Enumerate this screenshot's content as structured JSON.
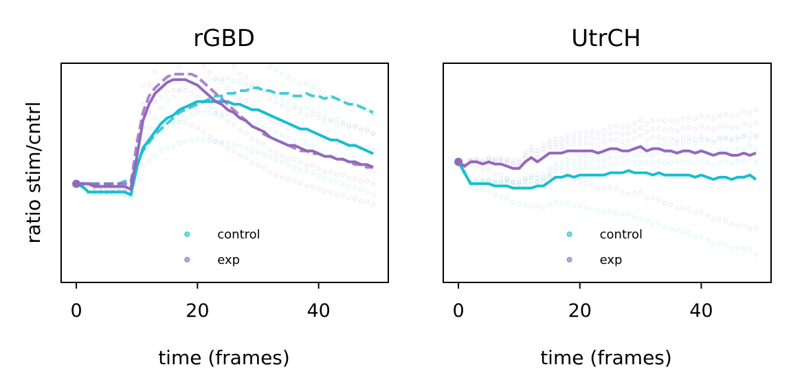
{
  "figure": {
    "ylabel": "ratio stim/cntrl",
    "colors": {
      "control": "#17becf",
      "exp": "#9467bd"
    }
  },
  "chart_data": [
    {
      "type": "line",
      "title": "rGBD",
      "xlabel": "time (frames)",
      "ylabel": "ratio stim/cntrl",
      "xlim": [
        -2.5,
        51.5
      ],
      "ylim": [
        0.64,
        1.44
      ],
      "xticks": [
        0,
        20,
        40
      ],
      "yticks_visible": false,
      "legend": {
        "position": "lower-center",
        "entries": [
          "control",
          "exp"
        ]
      },
      "series": [
        {
          "name": "control",
          "style": "solid",
          "color": "#17becf",
          "x": [
            0,
            1,
            2,
            3,
            4,
            5,
            6,
            7,
            8,
            9,
            10,
            11,
            12,
            13,
            14,
            15,
            16,
            17,
            18,
            19,
            20,
            21,
            22,
            23,
            24,
            25,
            26,
            27,
            28,
            29,
            30,
            31,
            32,
            33,
            34,
            35,
            36,
            37,
            38,
            39,
            40,
            41,
            42,
            43,
            44,
            45,
            46,
            47,
            48,
            49
          ],
          "y": [
            1.0,
            0.99,
            0.97,
            0.97,
            0.97,
            0.97,
            0.97,
            0.97,
            0.97,
            0.96,
            1.06,
            1.13,
            1.16,
            1.19,
            1.22,
            1.24,
            1.25,
            1.27,
            1.28,
            1.29,
            1.3,
            1.3,
            1.3,
            1.3,
            1.3,
            1.3,
            1.29,
            1.29,
            1.28,
            1.27,
            1.27,
            1.26,
            1.25,
            1.24,
            1.23,
            1.22,
            1.21,
            1.2,
            1.2,
            1.19,
            1.18,
            1.17,
            1.16,
            1.16,
            1.15,
            1.14,
            1.14,
            1.13,
            1.12,
            1.11
          ]
        },
        {
          "style": "dashed",
          "color": "#17becf",
          "x": [
            0,
            1,
            2,
            3,
            4,
            5,
            6,
            7,
            8,
            9,
            10,
            11,
            12,
            13,
            14,
            15,
            16,
            17,
            18,
            19,
            20,
            21,
            22,
            23,
            24,
            25,
            26,
            27,
            28,
            29,
            30,
            31,
            32,
            33,
            34,
            35,
            36,
            37,
            38,
            39,
            40,
            41,
            42,
            43,
            44,
            45,
            46,
            47,
            48,
            49
          ],
          "y": [
            1.0,
            1.0,
            1.0,
            1.0,
            1.0,
            1.0,
            1.0,
            1.0,
            1.01,
            1.01,
            1.08,
            1.12,
            1.15,
            1.18,
            1.2,
            1.22,
            1.24,
            1.26,
            1.27,
            1.28,
            1.29,
            1.3,
            1.31,
            1.32,
            1.32,
            1.33,
            1.33,
            1.34,
            1.34,
            1.35,
            1.35,
            1.34,
            1.34,
            1.33,
            1.33,
            1.33,
            1.32,
            1.32,
            1.33,
            1.32,
            1.32,
            1.31,
            1.32,
            1.31,
            1.3,
            1.29,
            1.29,
            1.28,
            1.27,
            1.26
          ]
        },
        {
          "name": "exp",
          "style": "solid",
          "color": "#9467bd",
          "x": [
            0,
            1,
            2,
            3,
            4,
            5,
            6,
            7,
            8,
            9,
            10,
            11,
            12,
            13,
            14,
            15,
            16,
            17,
            18,
            19,
            20,
            21,
            22,
            23,
            24,
            25,
            26,
            27,
            28,
            29,
            30,
            31,
            32,
            33,
            34,
            35,
            36,
            37,
            38,
            39,
            40,
            41,
            42,
            43,
            44,
            45,
            46,
            47,
            48,
            49
          ],
          "y": [
            1.0,
            1.0,
            1.0,
            0.99,
            0.99,
            0.99,
            0.99,
            0.99,
            0.99,
            0.98,
            1.1,
            1.23,
            1.29,
            1.33,
            1.35,
            1.37,
            1.38,
            1.38,
            1.38,
            1.37,
            1.36,
            1.34,
            1.32,
            1.3,
            1.29,
            1.27,
            1.26,
            1.24,
            1.23,
            1.21,
            1.2,
            1.19,
            1.17,
            1.16,
            1.15,
            1.14,
            1.14,
            1.13,
            1.12,
            1.12,
            1.11,
            1.1,
            1.1,
            1.09,
            1.09,
            1.08,
            1.08,
            1.07,
            1.07,
            1.06
          ]
        },
        {
          "style": "dashed",
          "color": "#9467bd",
          "x": [
            0,
            1,
            2,
            3,
            4,
            5,
            6,
            7,
            8,
            9,
            10,
            11,
            12,
            13,
            14,
            15,
            16,
            17,
            18,
            19,
            20,
            21,
            22,
            23,
            24,
            25,
            26,
            27,
            28,
            29,
            30,
            31,
            32,
            33,
            34,
            35,
            36,
            37,
            38,
            39,
            40,
            41,
            42,
            43,
            44,
            45,
            46,
            47,
            48,
            49
          ],
          "y": [
            1.0,
            1.0,
            1.0,
            1.0,
            1.0,
            1.0,
            1.0,
            1.0,
            1.0,
            1.0,
            1.15,
            1.26,
            1.32,
            1.35,
            1.37,
            1.39,
            1.4,
            1.4,
            1.4,
            1.4,
            1.39,
            1.37,
            1.35,
            1.33,
            1.31,
            1.29,
            1.27,
            1.25,
            1.23,
            1.21,
            1.2,
            1.18,
            1.17,
            1.16,
            1.15,
            1.14,
            1.13,
            1.12,
            1.12,
            1.11,
            1.11,
            1.1,
            1.1,
            1.09,
            1.09,
            1.08,
            1.07,
            1.07,
            1.06,
            1.06
          ]
        }
      ]
    },
    {
      "type": "line",
      "title": "UtrCH",
      "xlabel": "time (frames)",
      "ylabel": "",
      "xlim": [
        -2.5,
        51.5
      ],
      "ylim": [
        0.45,
        1.45
      ],
      "xticks": [
        0,
        20,
        40
      ],
      "yticks_visible": false,
      "legend": {
        "position": "lower-center",
        "entries": [
          "control",
          "exp"
        ]
      },
      "series": [
        {
          "name": "control",
          "style": "solid",
          "color": "#17becf",
          "x": [
            0,
            1,
            2,
            3,
            4,
            5,
            6,
            7,
            8,
            9,
            10,
            11,
            12,
            13,
            14,
            15,
            16,
            17,
            18,
            19,
            20,
            21,
            22,
            23,
            24,
            25,
            26,
            27,
            28,
            29,
            30,
            31,
            32,
            33,
            34,
            35,
            36,
            37,
            38,
            39,
            40,
            41,
            42,
            43,
            44,
            45,
            46,
            47,
            48,
            49
          ],
          "y": [
            1.0,
            0.95,
            0.9,
            0.9,
            0.9,
            0.9,
            0.89,
            0.89,
            0.89,
            0.88,
            0.88,
            0.88,
            0.88,
            0.89,
            0.89,
            0.91,
            0.93,
            0.93,
            0.94,
            0.93,
            0.94,
            0.94,
            0.94,
            0.94,
            0.94,
            0.95,
            0.95,
            0.95,
            0.96,
            0.95,
            0.95,
            0.95,
            0.94,
            0.95,
            0.94,
            0.94,
            0.94,
            0.94,
            0.94,
            0.93,
            0.94,
            0.93,
            0.92,
            0.93,
            0.93,
            0.92,
            0.93,
            0.93,
            0.94,
            0.92
          ]
        },
        {
          "name": "exp",
          "style": "solid",
          "color": "#9467bd",
          "x": [
            0,
            1,
            2,
            3,
            4,
            5,
            6,
            7,
            8,
            9,
            10,
            11,
            12,
            13,
            14,
            15,
            16,
            17,
            18,
            19,
            20,
            21,
            22,
            23,
            24,
            25,
            26,
            27,
            28,
            29,
            30,
            31,
            32,
            33,
            34,
            35,
            36,
            37,
            38,
            39,
            40,
            41,
            42,
            43,
            44,
            45,
            46,
            47,
            48,
            49
          ],
          "y": [
            1.0,
            0.98,
            1.0,
            1.0,
            0.99,
            1.0,
            0.99,
            0.99,
            0.98,
            0.97,
            0.97,
            1.0,
            1.02,
            1.0,
            1.02,
            1.04,
            1.04,
            1.04,
            1.05,
            1.05,
            1.05,
            1.05,
            1.05,
            1.04,
            1.05,
            1.06,
            1.06,
            1.05,
            1.05,
            1.06,
            1.07,
            1.05,
            1.06,
            1.06,
            1.05,
            1.05,
            1.04,
            1.05,
            1.05,
            1.04,
            1.05,
            1.04,
            1.03,
            1.04,
            1.04,
            1.03,
            1.03,
            1.04,
            1.03,
            1.04
          ]
        }
      ]
    }
  ]
}
